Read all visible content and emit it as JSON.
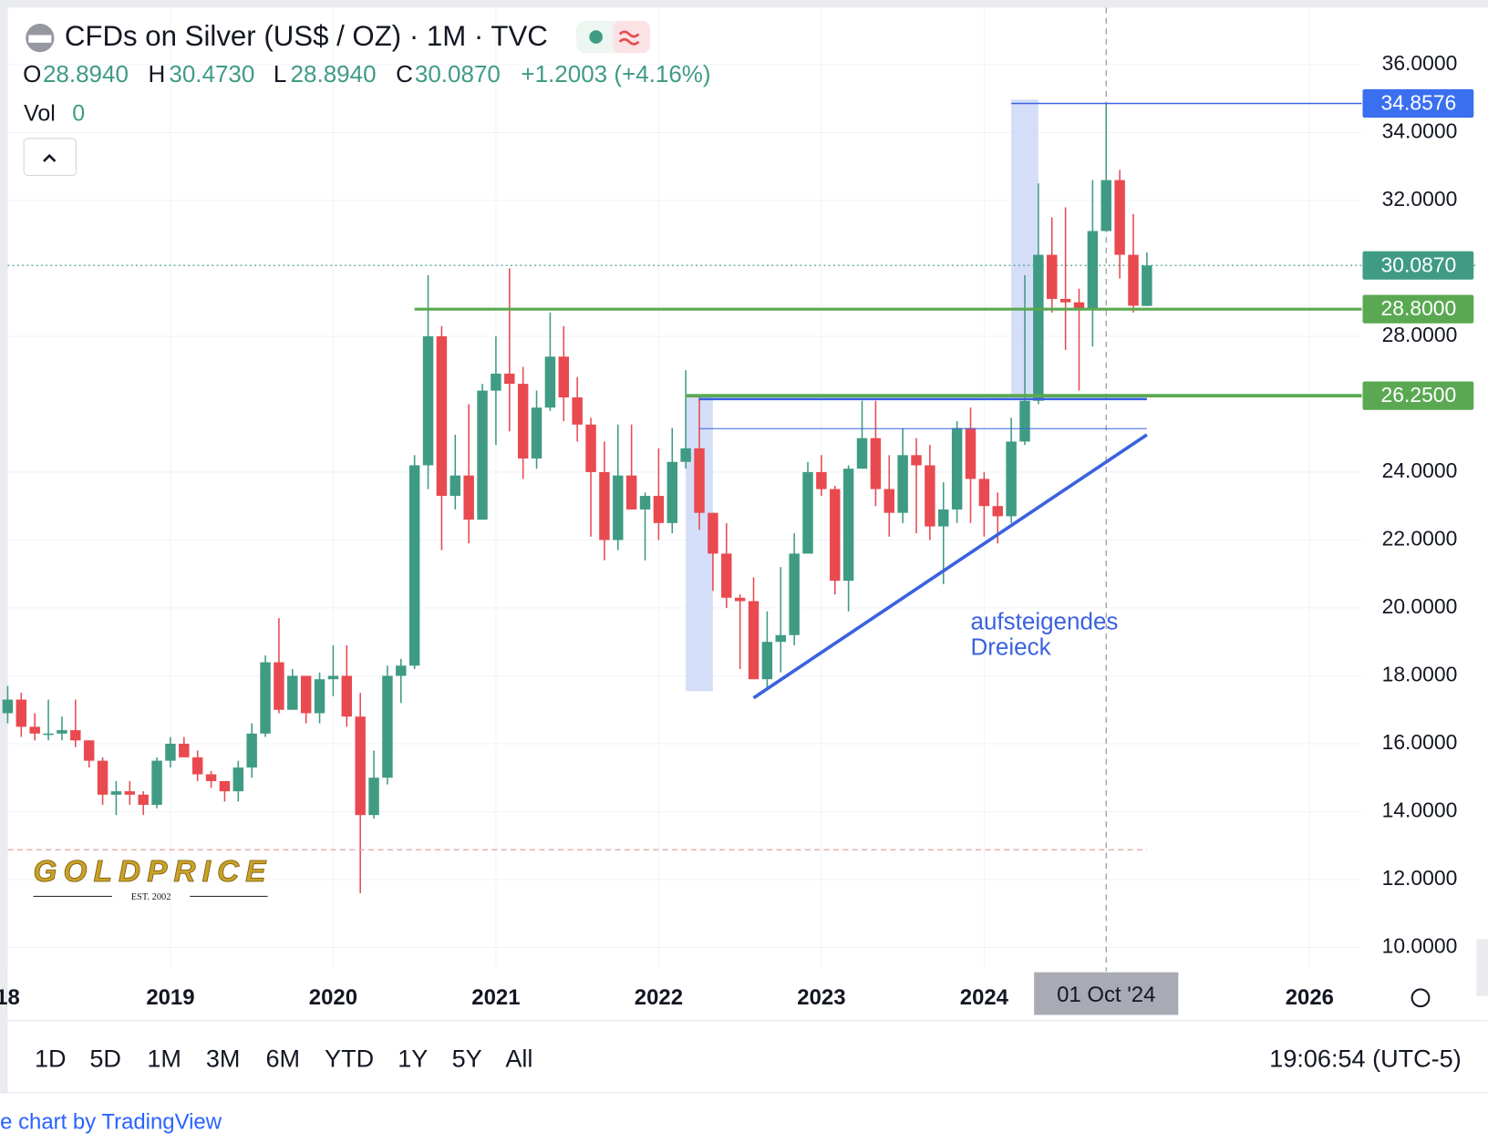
{
  "header": {
    "title": "CFDs on Silver (US$ / OZ) · 1M · TVC",
    "ohlc": [
      {
        "key": "O",
        "value": "28.8940"
      },
      {
        "key": "H",
        "value": "30.4730"
      },
      {
        "key": "L",
        "value": "28.8940"
      },
      {
        "key": "C",
        "value": "30.0870"
      }
    ],
    "change": "+1.2003 (+4.16%)",
    "vol_label": "Vol",
    "vol_value": "0"
  },
  "chart_data": {
    "type": "candlestick",
    "x": [
      "2018-01",
      "2018-02",
      "2018-03",
      "2018-04",
      "2018-05",
      "2018-06",
      "2018-07",
      "2018-08",
      "2018-09",
      "2018-10",
      "2018-11",
      "2018-12",
      "2019-01",
      "2019-02",
      "2019-03",
      "2019-04",
      "2019-05",
      "2019-06",
      "2019-07",
      "2019-08",
      "2019-09",
      "2019-10",
      "2019-11",
      "2019-12",
      "2020-01",
      "2020-02",
      "2020-03",
      "2020-04",
      "2020-05",
      "2020-06",
      "2020-07",
      "2020-08",
      "2020-09",
      "2020-10",
      "2020-11",
      "2020-12",
      "2021-01",
      "2021-02",
      "2021-03",
      "2021-04",
      "2021-05",
      "2021-06",
      "2021-07",
      "2021-08",
      "2021-09",
      "2021-10",
      "2021-11",
      "2021-12",
      "2022-01",
      "2022-02",
      "2022-03",
      "2022-04",
      "2022-05",
      "2022-06",
      "2022-07",
      "2022-08",
      "2022-09",
      "2022-10",
      "2022-11",
      "2022-12",
      "2023-01",
      "2023-02",
      "2023-03",
      "2023-04",
      "2023-05",
      "2023-06",
      "2023-07",
      "2023-08",
      "2023-09",
      "2023-10",
      "2023-11",
      "2023-12",
      "2024-01",
      "2024-02",
      "2024-03",
      "2024-04",
      "2024-05",
      "2024-06",
      "2024-07",
      "2024-08",
      "2024-09",
      "2024-10",
      "2024-11",
      "2024-12",
      "2025-01"
    ],
    "ohlc": [
      [
        16.9,
        17.7,
        16.6,
        17.3
      ],
      [
        17.3,
        17.5,
        16.2,
        16.5
      ],
      [
        16.5,
        16.9,
        16.1,
        16.3
      ],
      [
        16.3,
        17.3,
        16.1,
        16.3
      ],
      [
        16.3,
        16.8,
        16.1,
        16.4
      ],
      [
        16.4,
        17.3,
        15.9,
        16.1
      ],
      [
        16.1,
        16.1,
        15.3,
        15.5
      ],
      [
        15.5,
        15.6,
        14.2,
        14.5
      ],
      [
        14.5,
        14.9,
        13.9,
        14.6
      ],
      [
        14.6,
        14.9,
        14.2,
        14.5
      ],
      [
        14.5,
        14.6,
        13.9,
        14.2
      ],
      [
        14.2,
        15.6,
        14.1,
        15.5
      ],
      [
        15.5,
        16.2,
        15.3,
        16.0
      ],
      [
        16.0,
        16.2,
        15.6,
        15.6
      ],
      [
        15.6,
        15.8,
        14.9,
        15.1
      ],
      [
        15.1,
        15.2,
        14.7,
        14.9
      ],
      [
        14.9,
        14.9,
        14.3,
        14.6
      ],
      [
        14.6,
        15.5,
        14.3,
        15.3
      ],
      [
        15.3,
        16.6,
        15.0,
        16.3
      ],
      [
        16.3,
        18.6,
        16.2,
        18.4
      ],
      [
        18.4,
        19.7,
        16.9,
        17.0
      ],
      [
        17.0,
        18.2,
        17.0,
        18.0
      ],
      [
        18.0,
        18.0,
        16.6,
        16.9
      ],
      [
        16.9,
        18.1,
        16.6,
        17.9
      ],
      [
        17.9,
        18.9,
        17.4,
        18.0
      ],
      [
        18.0,
        18.9,
        16.5,
        16.8
      ],
      [
        16.8,
        17.5,
        11.6,
        13.9
      ],
      [
        13.9,
        15.8,
        13.8,
        15.0
      ],
      [
        15.0,
        18.3,
        14.8,
        18.0
      ],
      [
        18.0,
        18.5,
        17.2,
        18.3
      ],
      [
        18.3,
        24.5,
        18.2,
        24.2
      ],
      [
        24.2,
        29.8,
        23.5,
        28.0
      ],
      [
        28.0,
        28.3,
        21.7,
        23.3
      ],
      [
        23.3,
        25.1,
        22.9,
        23.9
      ],
      [
        23.9,
        26.0,
        21.9,
        22.6
      ],
      [
        22.6,
        26.6,
        22.6,
        26.4
      ],
      [
        26.4,
        28.0,
        24.8,
        26.9
      ],
      [
        26.9,
        30.0,
        25.2,
        26.6
      ],
      [
        26.6,
        27.1,
        23.8,
        24.4
      ],
      [
        24.4,
        26.4,
        24.1,
        25.9
      ],
      [
        25.9,
        28.7,
        25.8,
        27.4
      ],
      [
        27.4,
        28.3,
        25.5,
        26.2
      ],
      [
        26.2,
        26.8,
        24.9,
        25.4
      ],
      [
        25.4,
        25.6,
        22.1,
        24.0
      ],
      [
        24.0,
        24.9,
        21.4,
        22.0
      ],
      [
        22.0,
        25.4,
        21.7,
        23.9
      ],
      [
        23.9,
        25.4,
        22.9,
        22.9
      ],
      [
        22.9,
        23.4,
        21.4,
        23.3
      ],
      [
        23.3,
        24.7,
        22.0,
        22.5
      ],
      [
        22.5,
        25.3,
        22.2,
        24.3
      ],
      [
        24.3,
        27.0,
        24.1,
        24.7
      ],
      [
        24.7,
        26.2,
        22.3,
        22.8
      ],
      [
        22.8,
        22.8,
        20.5,
        21.6
      ],
      [
        21.6,
        22.5,
        20.0,
        20.3
      ],
      [
        20.3,
        20.4,
        18.2,
        20.2
      ],
      [
        20.2,
        20.9,
        17.9,
        17.9
      ],
      [
        17.9,
        19.9,
        17.6,
        19.0
      ],
      [
        19.0,
        21.2,
        18.1,
        19.2
      ],
      [
        19.2,
        22.2,
        18.9,
        21.6
      ],
      [
        21.6,
        24.3,
        21.6,
        24.0
      ],
      [
        24.0,
        24.5,
        23.3,
        23.5
      ],
      [
        23.5,
        23.6,
        20.4,
        20.8
      ],
      [
        20.8,
        24.2,
        19.9,
        24.1
      ],
      [
        24.1,
        26.1,
        24.1,
        25.0
      ],
      [
        25.0,
        26.1,
        23.0,
        23.5
      ],
      [
        23.5,
        24.5,
        22.1,
        22.8
      ],
      [
        22.8,
        25.3,
        22.5,
        24.5
      ],
      [
        24.5,
        25.0,
        22.2,
        24.2
      ],
      [
        24.2,
        24.8,
        22.0,
        22.4
      ],
      [
        22.4,
        23.7,
        20.7,
        22.9
      ],
      [
        22.9,
        25.5,
        22.5,
        25.3
      ],
      [
        25.3,
        25.9,
        22.5,
        23.8
      ],
      [
        23.8,
        24.0,
        22.1,
        23.0
      ],
      [
        23.0,
        23.4,
        21.9,
        22.7
      ],
      [
        22.7,
        25.6,
        22.5,
        24.9
      ],
      [
        24.9,
        29.8,
        24.8,
        26.1
      ],
      [
        26.1,
        32.5,
        26.0,
        30.4
      ],
      [
        30.4,
        31.5,
        28.7,
        29.1
      ],
      [
        29.1,
        31.8,
        27.6,
        29.0
      ],
      [
        29.0,
        29.4,
        26.4,
        28.8
      ],
      [
        28.8,
        32.6,
        27.7,
        31.1
      ],
      [
        31.1,
        34.86,
        31.1,
        32.6
      ],
      [
        32.6,
        32.9,
        29.7,
        30.4
      ],
      [
        30.4,
        31.6,
        28.7,
        28.9
      ],
      [
        28.894,
        30.473,
        28.894,
        30.087
      ]
    ],
    "up_color": "#3f9b84",
    "down_color": "#e84a50",
    "xlim": [
      2018,
      2026.32
    ],
    "ylim": [
      9.41,
      37.68
    ],
    "xticks": [
      {
        "value": 2018,
        "label": "18"
      },
      2019,
      2020,
      2021,
      2022,
      2023,
      2024,
      2026
    ],
    "yticks": [
      {
        "value": 36,
        "label": "36.0000"
      },
      {
        "value": 34,
        "label": "34.0000"
      },
      {
        "value": 32,
        "label": "32.0000"
      },
      {
        "value": 28,
        "label": "28.0000"
      },
      {
        "value": 24,
        "label": "24.0000"
      },
      {
        "value": 22,
        "label": "22.0000"
      },
      {
        "value": 20,
        "label": "20.0000"
      },
      {
        "value": 18,
        "label": "18.0000"
      },
      {
        "value": 16,
        "label": "16.0000"
      },
      {
        "value": 14,
        "label": "14.0000"
      },
      {
        "value": 12,
        "label": "12.0000"
      },
      {
        "value": 10,
        "label": "10.0000"
      }
    ],
    "grid": true,
    "price_labels": [
      {
        "value": 34.8576,
        "label": "34.8576",
        "color": "#3a6ff0"
      },
      {
        "value": 30.087,
        "label": "30.0870",
        "color": "#3f9b84",
        "line": "dotted"
      },
      {
        "value": 28.8,
        "label": "28.8000",
        "color": "#5aa952"
      },
      {
        "value": 26.25,
        "label": "26.2500",
        "color": "#5aa952"
      }
    ],
    "hlines": [
      {
        "value": 34.8576,
        "from": "2024-03",
        "color": "#3a62e0",
        "width": 1.5
      },
      {
        "value": 28.8,
        "from": "2020-07",
        "color": "#5aa952",
        "width": 3
      },
      {
        "value": 26.25,
        "from": "2022-03",
        "color": "#5aa952",
        "width": 3.5
      },
      {
        "value": 26.15,
        "from": "2022-04",
        "to": "2025-01",
        "color": "#3a62e0",
        "width": 2.5
      },
      {
        "value": 25.28,
        "from": "2022-04",
        "to": "2025-01",
        "color": "#3a62e0",
        "width": 1
      },
      {
        "value": 12.88,
        "from": "2018-01",
        "to": "2025-01",
        "color": "#e2a3a3",
        "width": 1.2,
        "dash": "6 4"
      }
    ],
    "trendlines": [
      {
        "from": [
          "2022-08",
          17.35
        ],
        "to": [
          "2025-01",
          25.1
        ],
        "color": "#3a62e0"
      }
    ],
    "zones": [
      {
        "from": "2024-03",
        "to": "2024-05",
        "ylim": [
          26.3,
          34.97
        ]
      },
      {
        "from": "2022-03",
        "to": "2022-05",
        "ylim": [
          17.55,
          26.2
        ]
      }
    ],
    "annotation": {
      "lines": [
        "aufsteigendes",
        "Dreieck"
      ],
      "x": "2023-12",
      "y": 19.5,
      "color": "#3a62e0"
    },
    "crosshair": {
      "x": "2024-10",
      "label": "01 Oct '24"
    }
  },
  "logo": {
    "name": "GOLDPRICE",
    "est": "EST. 2002"
  },
  "toolbar": {
    "ranges": [
      "1D",
      "5D",
      "1M",
      "3M",
      "6M",
      "YTD",
      "1Y",
      "5Y",
      "All"
    ],
    "time": "19:06:54 (UTC-5)"
  },
  "footer": "e chart by TradingView"
}
